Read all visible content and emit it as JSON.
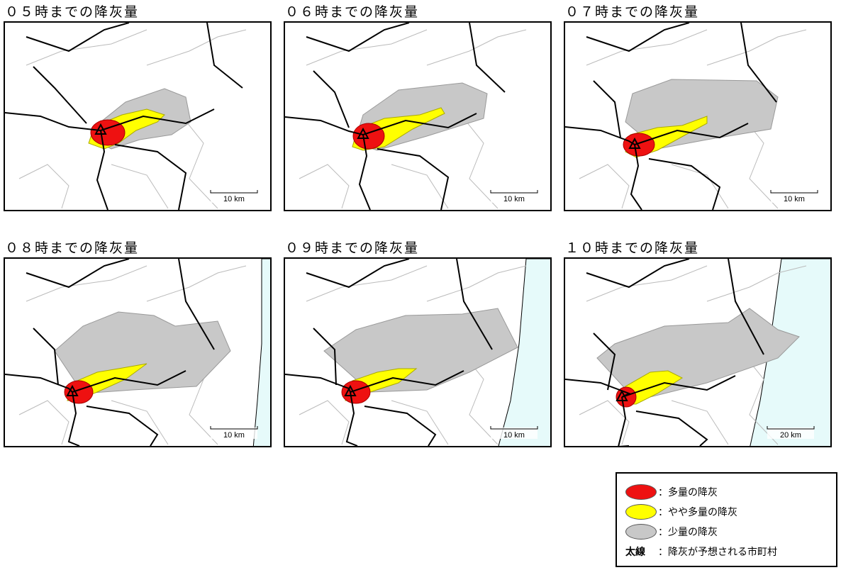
{
  "panels": [
    {
      "title": "０５時までの降灰量",
      "scale": "10 km"
    },
    {
      "title": "０６時までの降灰量",
      "scale": "10 km"
    },
    {
      "title": "０７時までの降灰量",
      "scale": "10 km"
    },
    {
      "title": "０８時までの降灰量",
      "scale": "10 km"
    },
    {
      "title": "０９時までの降灰量",
      "scale": "10 km"
    },
    {
      "title": "１０時までの降灰量",
      "scale": "20 km"
    }
  ],
  "legend": {
    "items": [
      {
        "label": "：多量の降灰"
      },
      {
        "label": "：やや多量の降灰"
      },
      {
        "label": "：少量の降灰"
      }
    ],
    "boundary_key": "太線",
    "boundary_label": "：降灰が予想される市町村"
  }
}
